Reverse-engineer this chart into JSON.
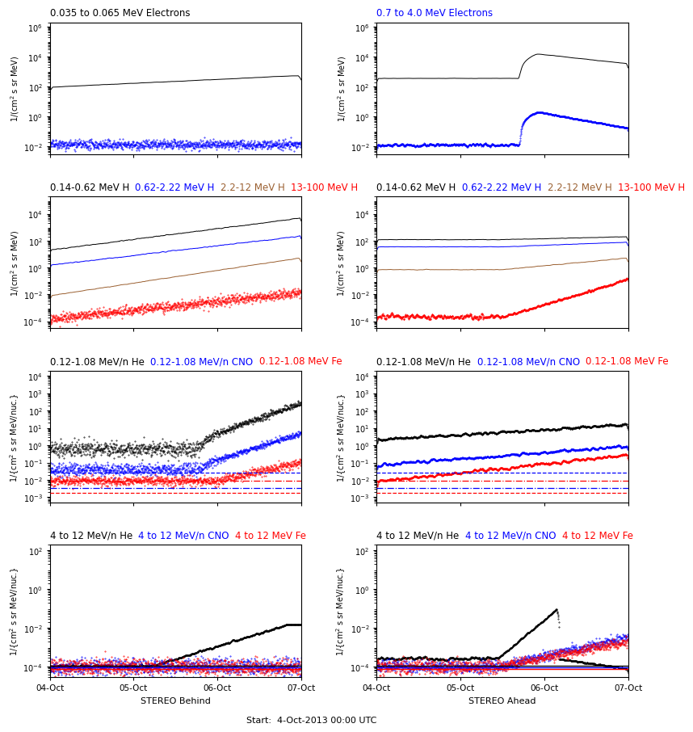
{
  "title_row1_left": "0.035 to 0.065 MeV Electrons",
  "title_row1_right": "0.7 to 4.0 MeV Electrons",
  "title_row2_left": [
    {
      "text": "0.14-0.62 MeV H",
      "color": "black"
    },
    {
      "text": "0.62-2.22 MeV H",
      "color": "blue"
    },
    {
      "text": "2.2-12 MeV H",
      "color": "#9b6031"
    },
    {
      "text": "13-100 MeV H",
      "color": "red"
    }
  ],
  "title_row2_right": [
    {
      "text": "0.14-0.62 MeV H",
      "color": "black"
    },
    {
      "text": "0.62-2.22 MeV H",
      "color": "blue"
    },
    {
      "text": "2.2-12 MeV H",
      "color": "#9b6031"
    },
    {
      "text": "13-100 MeV H",
      "color": "red"
    }
  ],
  "title_row3_left": [
    {
      "text": "0.12-1.08 MeV/n He",
      "color": "black"
    },
    {
      "text": "0.12-1.08 MeV/n CNO",
      "color": "blue"
    },
    {
      "text": "0.12-1.08 MeV Fe",
      "color": "red"
    }
  ],
  "title_row3_right": [
    {
      "text": "0.12-1.08 MeV/n He",
      "color": "black"
    },
    {
      "text": "0.12-1.08 MeV/n CNO",
      "color": "blue"
    },
    {
      "text": "0.12-1.08 MeV Fe",
      "color": "red"
    }
  ],
  "title_row4_left": [
    {
      "text": "4 to 12 MeV/n He",
      "color": "black"
    },
    {
      "text": "4 to 12 MeV/n CNO",
      "color": "blue"
    },
    {
      "text": "4 to 12 MeV Fe",
      "color": "red"
    }
  ],
  "title_row4_right": [
    {
      "text": "4 to 12 MeV/n He",
      "color": "black"
    },
    {
      "text": "4 to 12 MeV/n CNO",
      "color": "blue"
    },
    {
      "text": "4 to 12 MeV Fe",
      "color": "red"
    }
  ],
  "xtick_labels": [
    "04-Oct",
    "05-Oct",
    "06-Oct",
    "07-Oct"
  ],
  "xlabel_left": "STEREO Behind",
  "xlabel_center": "Start:  4-Oct-2013 00:00 UTC",
  "xlabel_right": "STEREO Ahead",
  "seed": 42
}
